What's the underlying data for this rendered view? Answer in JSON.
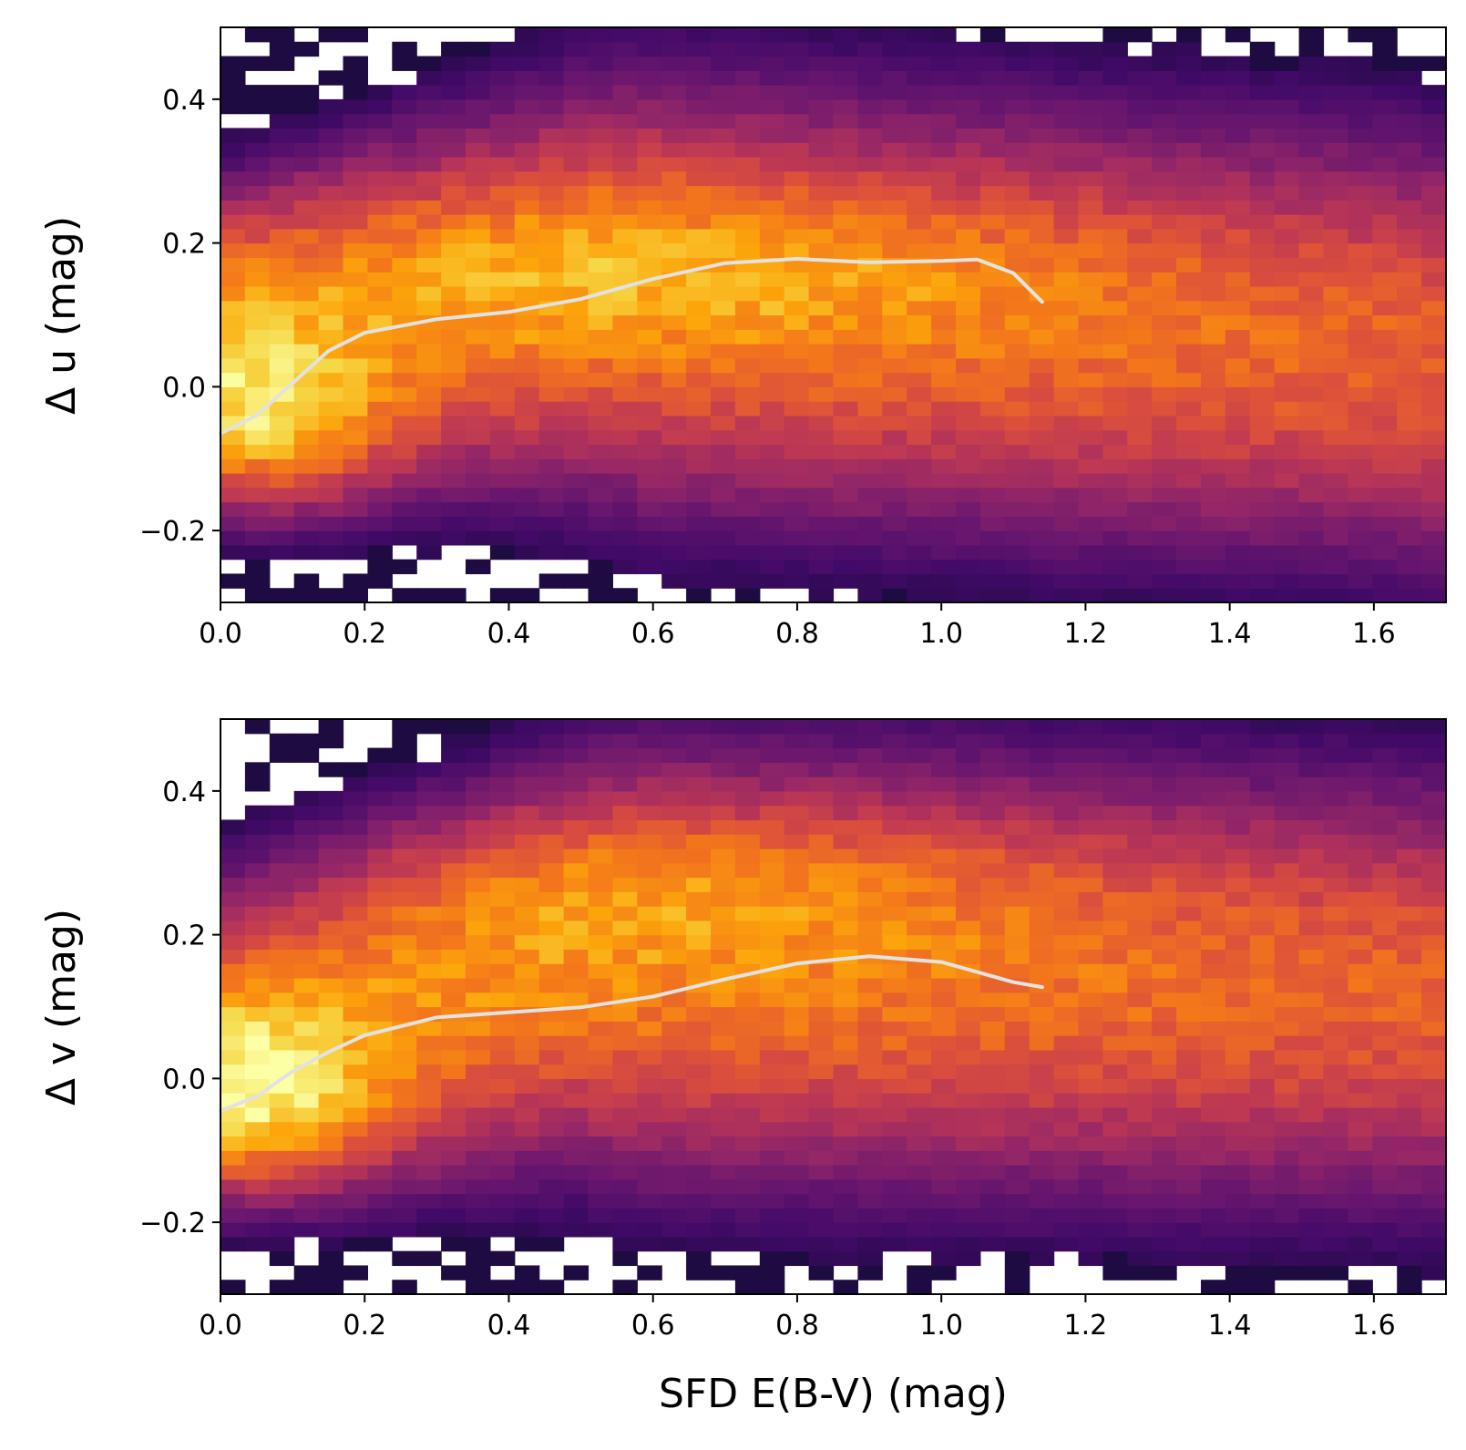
{
  "chart_data": [
    {
      "type": "heatmap",
      "panel": "top",
      "xlabel": "",
      "ylabel": "Δ u  (mag)",
      "xlim": [
        0.0,
        1.7
      ],
      "ylim": [
        -0.3,
        0.5
      ],
      "xticks": [
        0.0,
        0.2,
        0.4,
        0.6,
        0.8,
        1.0,
        1.2,
        1.4,
        1.6
      ],
      "xtick_labels": [
        "0.0",
        "0.2",
        "0.4",
        "0.6",
        "0.8",
        "1.0",
        "1.2",
        "1.4",
        "1.6"
      ],
      "yticks": [
        -0.2,
        0.0,
        0.2,
        0.4
      ],
      "ytick_labels": [
        "−0.2",
        "0.0",
        "0.2",
        "0.4"
      ],
      "colormap": "inferno",
      "bins": {
        "nx": 50,
        "ny": 40
      },
      "density_model": {
        "ridge": [
          [
            0.0,
            0.08
          ],
          [
            0.5,
            0.135
          ],
          [
            1.7,
            0.05
          ]
        ],
        "upper_lobe_y": 0.17,
        "center_x": 0.05,
        "center_y": -0.05
      },
      "curve": {
        "color": "#e2e2e2",
        "x": [
          0.0,
          0.05,
          0.1,
          0.15,
          0.2,
          0.3,
          0.4,
          0.5,
          0.6,
          0.7,
          0.8,
          0.9,
          1.0,
          1.05,
          1.1,
          1.14
        ],
        "y": [
          -0.065,
          -0.04,
          0.005,
          0.05,
          0.075,
          0.094,
          0.104,
          0.122,
          0.15,
          0.172,
          0.178,
          0.173,
          0.175,
          0.177,
          0.158,
          0.118
        ]
      }
    },
    {
      "type": "heatmap",
      "panel": "bottom",
      "xlabel": "SFD E(B-V)  (mag)",
      "ylabel": "Δ v  (mag)",
      "xlim": [
        0.0,
        1.7
      ],
      "ylim": [
        -0.3,
        0.5
      ],
      "xticks": [
        0.0,
        0.2,
        0.4,
        0.6,
        0.8,
        1.0,
        1.2,
        1.4,
        1.6
      ],
      "xtick_labels": [
        "0.0",
        "0.2",
        "0.4",
        "0.6",
        "0.8",
        "1.0",
        "1.2",
        "1.4",
        "1.6"
      ],
      "yticks": [
        -0.2,
        0.0,
        0.2,
        0.4
      ],
      "ytick_labels": [
        "−0.2",
        "0.0",
        "0.2",
        "0.4"
      ],
      "colormap": "inferno",
      "bins": {
        "nx": 50,
        "ny": 40
      },
      "density_model": {
        "ridge": [
          [
            0.0,
            0.05
          ],
          [
            0.5,
            0.16
          ],
          [
            1.7,
            0.12
          ]
        ],
        "upper_lobe_y": 0.27,
        "center_x": 0.05,
        "center_y": -0.03
      },
      "curve": {
        "color": "#e2e2e2",
        "x": [
          0.0,
          0.05,
          0.1,
          0.15,
          0.2,
          0.3,
          0.4,
          0.5,
          0.6,
          0.7,
          0.8,
          0.9,
          1.0,
          1.05,
          1.1,
          1.14
        ],
        "y": [
          -0.045,
          -0.025,
          0.01,
          0.037,
          0.06,
          0.085,
          0.092,
          0.099,
          0.114,
          0.138,
          0.16,
          0.17,
          0.162,
          0.148,
          0.134,
          0.127
        ]
      }
    }
  ]
}
